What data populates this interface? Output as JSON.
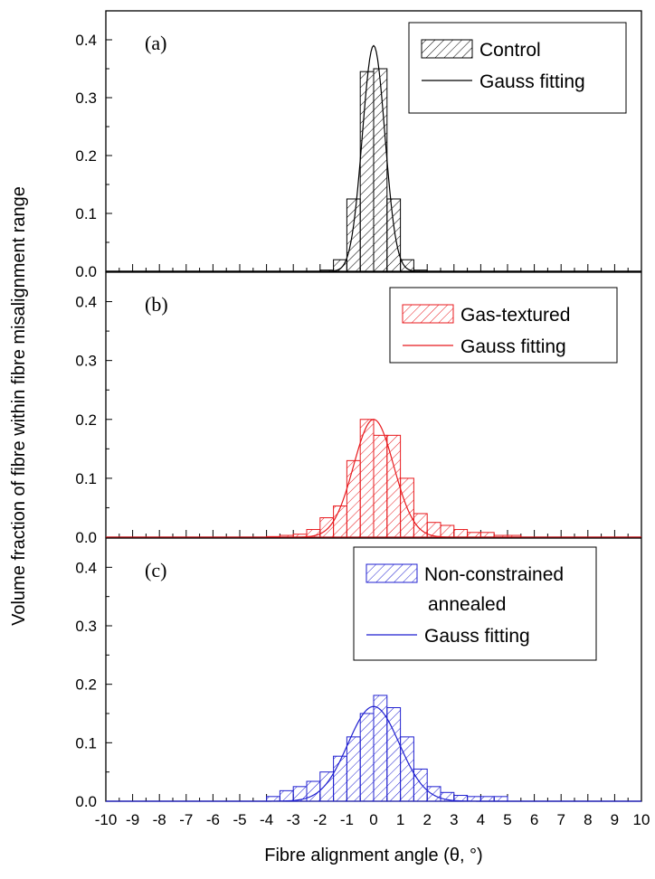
{
  "chart_data": {
    "type": "bar",
    "x_axis": {
      "label": "Fibre alignment angle (θ, °)",
      "range": [
        -10,
        10
      ],
      "tick_labels": [
        "-10",
        "-9",
        "-8",
        "-7",
        "-6",
        "-5",
        "-4",
        "-3",
        "-2",
        "-1",
        "0",
        "1",
        "2",
        "3",
        "4",
        "5",
        "6",
        "7",
        "8",
        "9",
        "10"
      ]
    },
    "y_axis": {
      "label": "Volume fraction of fibre within fibre misalignment range",
      "range": [
        0,
        0.45
      ],
      "tick_labels": [
        "0.0",
        "0.1",
        "0.2",
        "0.3",
        "0.4"
      ]
    },
    "grid": false,
    "panels": [
      {
        "panel_label": "(a)",
        "color": "#000000",
        "legend_position": "top-right",
        "legend": [
          "Control",
          "Gauss fitting"
        ],
        "bin_width": 0.5,
        "bin_centers": [
          -1.75,
          -1.25,
          -0.75,
          -0.25,
          0.25,
          0.75,
          1.25,
          1.75
        ],
        "values": [
          0.002,
          0.02,
          0.125,
          0.345,
          0.35,
          0.125,
          0.02,
          0.002
        ],
        "gauss_fit": {
          "center": 0.0,
          "amplitude": 0.39,
          "sigma": 0.42
        }
      },
      {
        "panel_label": "(b)",
        "color": "#e8191d",
        "legend_position": "top-right",
        "legend": [
          "Gas-textured",
          "Gauss fitting"
        ],
        "bin_width": 0.5,
        "bin_centers": [
          -3.75,
          -3.25,
          -2.75,
          -2.25,
          -1.75,
          -1.25,
          -0.75,
          -0.25,
          0.25,
          0.75,
          1.25,
          1.75,
          2.25,
          2.75,
          3.25,
          3.75,
          4.25,
          4.75,
          5.25
        ],
        "values": [
          0.001,
          0.003,
          0.005,
          0.013,
          0.033,
          0.053,
          0.13,
          0.2,
          0.173,
          0.173,
          0.1,
          0.04,
          0.025,
          0.02,
          0.013,
          0.008,
          0.008,
          0.003,
          0.003
        ],
        "gauss_fit": {
          "center": 0.0,
          "amplitude": 0.2,
          "sigma": 0.75
        }
      },
      {
        "panel_label": "(c)",
        "color": "#1f1fd0",
        "legend_position": "top-right",
        "legend": [
          "Non-constrained",
          "annealed",
          "Gauss fitting"
        ],
        "bin_width": 0.5,
        "bin_centers": [
          -3.75,
          -3.25,
          -2.75,
          -2.25,
          -1.75,
          -1.25,
          -0.75,
          -0.25,
          0.25,
          0.75,
          1.25,
          1.75,
          2.25,
          2.75,
          3.25,
          3.75,
          4.25,
          4.75
        ],
        "values": [
          0.008,
          0.018,
          0.025,
          0.034,
          0.05,
          0.077,
          0.11,
          0.15,
          0.181,
          0.16,
          0.11,
          0.055,
          0.025,
          0.015,
          0.01,
          0.008,
          0.008,
          0.008
        ],
        "gauss_fit": {
          "center": 0.0,
          "amplitude": 0.162,
          "sigma": 0.96
        }
      }
    ]
  }
}
